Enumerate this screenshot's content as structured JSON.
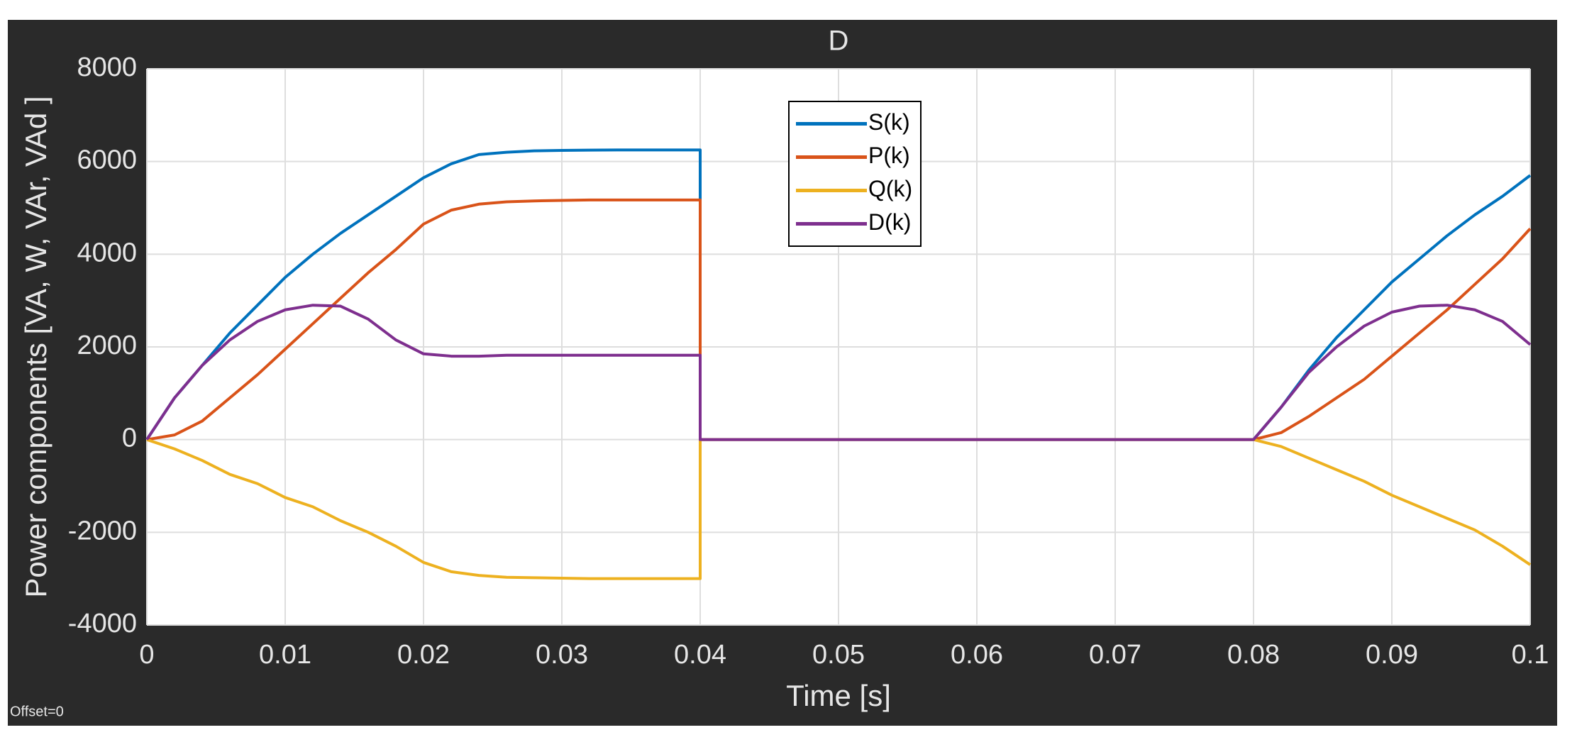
{
  "chart_data": {
    "type": "line",
    "title": "D",
    "x_label": "Time [s]",
    "y_label": "Power components [VA, W, VAr, VAd ]",
    "annotation": "Offset=0",
    "x": [
      0,
      0.002,
      0.004,
      0.006,
      0.008,
      0.01,
      0.012,
      0.014,
      0.016,
      0.018,
      0.02,
      0.022,
      0.024,
      0.026,
      0.028,
      0.03,
      0.032,
      0.034,
      0.036,
      0.038,
      0.04,
      0.04,
      0.08,
      0.082,
      0.084,
      0.086,
      0.088,
      0.09,
      0.092,
      0.094,
      0.096,
      0.098,
      0.1
    ],
    "series": [
      {
        "name": "S(k)",
        "color": "#0072bd",
        "values": [
          0,
          900,
          1600,
          2300,
          2900,
          3500,
          4000,
          4450,
          4850,
          5250,
          5650,
          5950,
          6150,
          6200,
          6230,
          6240,
          6245,
          6250,
          6250,
          6250,
          6250,
          0,
          0,
          700,
          1500,
          2200,
          2800,
          3400,
          3900,
          4400,
          4850,
          5250,
          5700
        ]
      },
      {
        "name": "P(k)",
        "color": "#d95319",
        "values": [
          0,
          100,
          400,
          900,
          1400,
          1950,
          2500,
          3050,
          3600,
          4100,
          4650,
          4950,
          5080,
          5130,
          5150,
          5160,
          5170,
          5170,
          5170,
          5170,
          5170,
          0,
          0,
          150,
          500,
          900,
          1300,
          1800,
          2300,
          2800,
          3350,
          3900,
          4550
        ]
      },
      {
        "name": "Q(k)",
        "color": "#edb120",
        "values": [
          0,
          -200,
          -450,
          -750,
          -950,
          -1250,
          -1450,
          -1750,
          -2000,
          -2300,
          -2650,
          -2850,
          -2930,
          -2970,
          -2980,
          -2990,
          -3000,
          -3000,
          -3000,
          -3000,
          -3000,
          0,
          0,
          -150,
          -400,
          -650,
          -900,
          -1200,
          -1450,
          -1700,
          -1950,
          -2300,
          -2700
        ]
      },
      {
        "name": "D(k)",
        "color": "#7e2f8e",
        "values": [
          0,
          900,
          1600,
          2150,
          2550,
          2800,
          2900,
          2880,
          2600,
          2150,
          1850,
          1800,
          1800,
          1820,
          1820,
          1820,
          1820,
          1820,
          1820,
          1820,
          1820,
          0,
          0,
          700,
          1450,
          2000,
          2450,
          2750,
          2880,
          2900,
          2800,
          2550,
          2050
        ]
      }
    ],
    "xlim": [
      0,
      0.1
    ],
    "xticks": [
      0,
      0.01,
      0.02,
      0.03,
      0.04,
      0.05,
      0.06,
      0.07,
      0.08,
      0.09,
      0.1
    ],
    "ylim": [
      -4000,
      8000
    ],
    "yticks": [
      -4000,
      -2000,
      0,
      2000,
      4000,
      6000,
      8000
    ],
    "grid": true,
    "legend": "top-center"
  }
}
